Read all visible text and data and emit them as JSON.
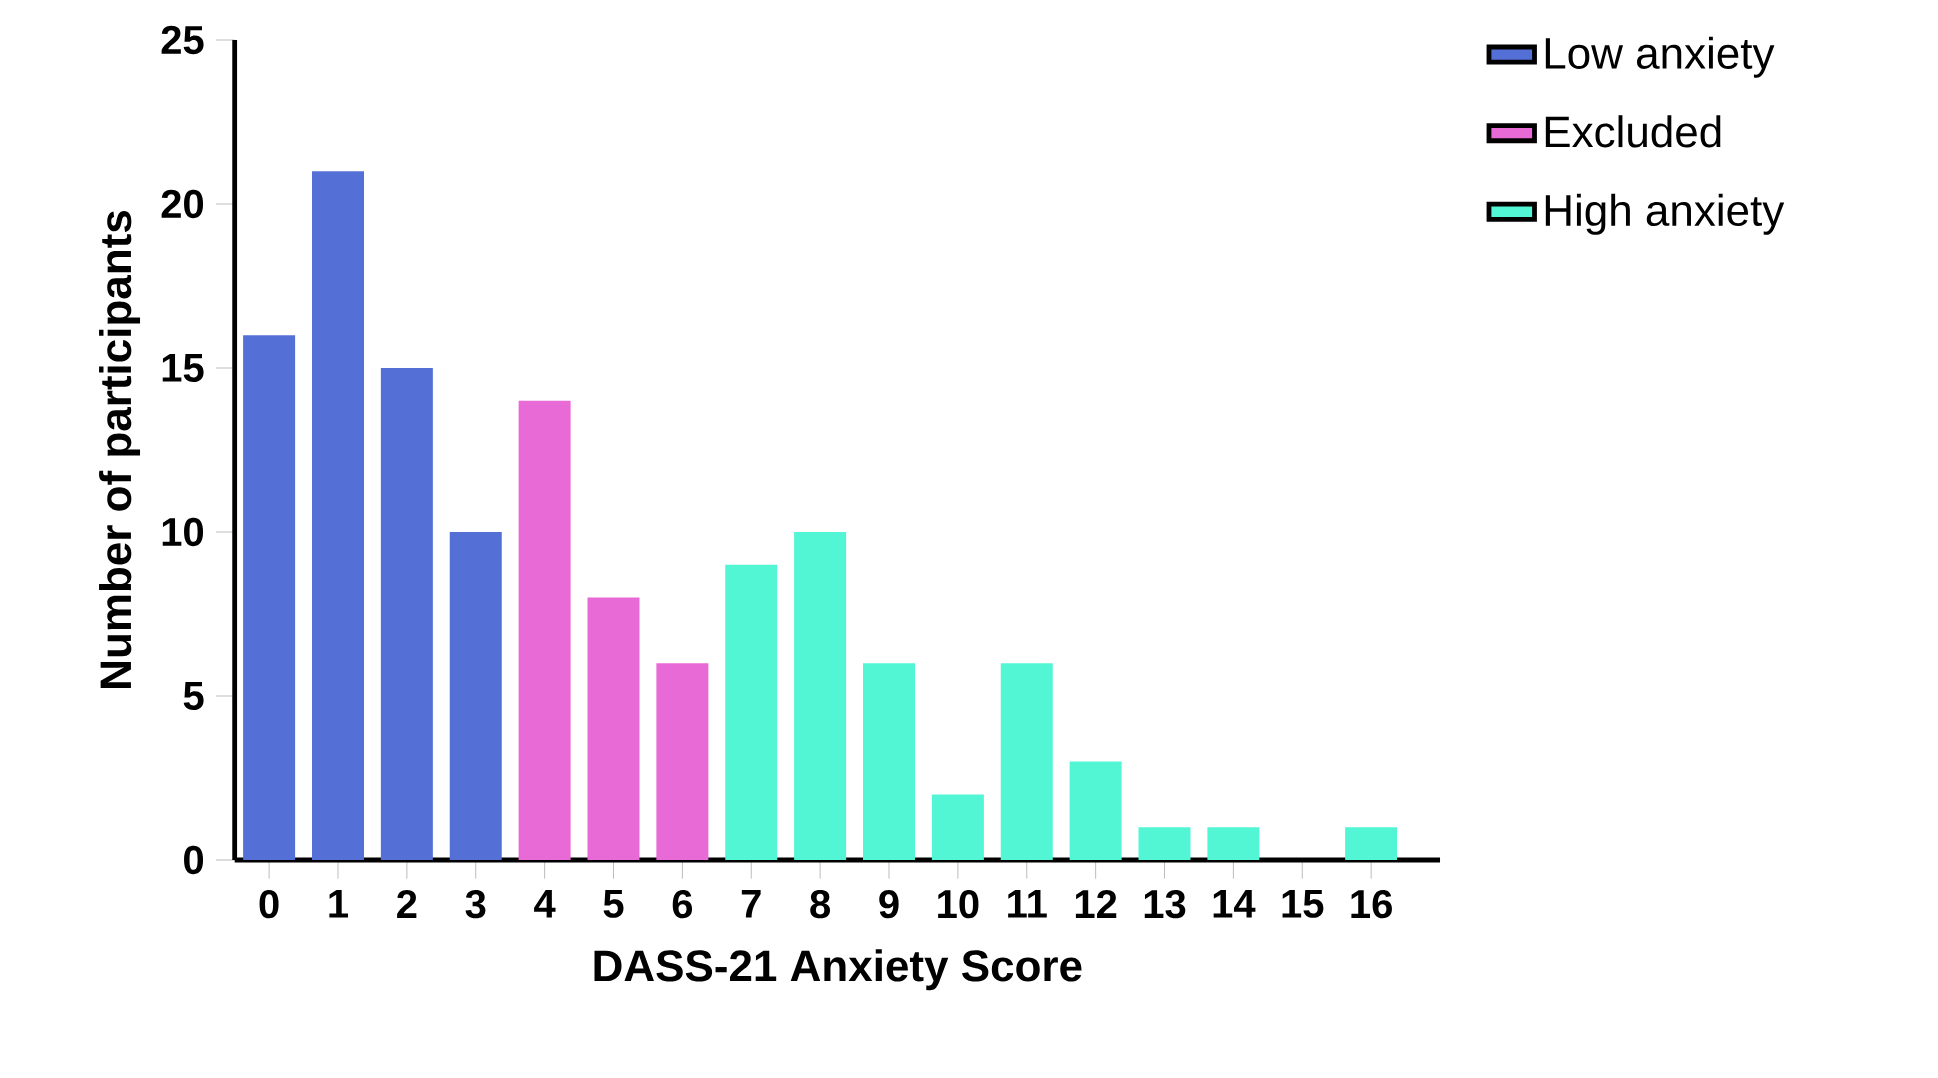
{
  "chart_data": {
    "type": "bar",
    "xlabel": "DASS-21 Anxiety Score",
    "ylabel": "Number of participants",
    "categories": [
      "0",
      "1",
      "2",
      "3",
      "4",
      "5",
      "6",
      "7",
      "8",
      "9",
      "10",
      "11",
      "12",
      "13",
      "14",
      "15",
      "16"
    ],
    "series": [
      {
        "name": "Low anxiety",
        "color": "#5470d6",
        "values": [
          16,
          21,
          15,
          10,
          null,
          null,
          null,
          null,
          null,
          null,
          null,
          null,
          null,
          null,
          null,
          null,
          null
        ]
      },
      {
        "name": "Excluded",
        "color": "#e86ad6",
        "values": [
          null,
          null,
          null,
          null,
          14,
          8,
          6,
          null,
          null,
          null,
          null,
          null,
          null,
          null,
          null,
          null,
          null
        ]
      },
      {
        "name": "High anxiety",
        "color": "#52f5d4",
        "values": [
          null,
          null,
          null,
          null,
          null,
          null,
          null,
          9,
          10,
          6,
          2,
          6,
          3,
          1,
          1,
          0,
          1
        ]
      }
    ],
    "ylim": [
      0,
      25
    ],
    "yticks": [
      0,
      5,
      10,
      15,
      20,
      25
    ],
    "legend": "right"
  }
}
